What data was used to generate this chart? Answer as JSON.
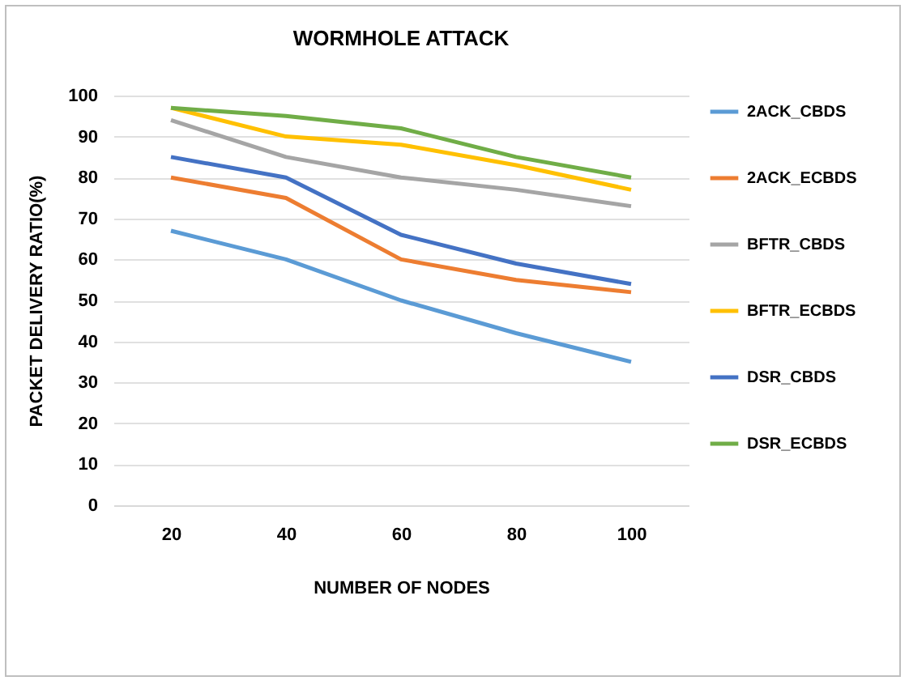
{
  "chart_data": {
    "type": "line",
    "title": "WORMHOLE ATTACK",
    "xlabel": "NUMBER OF NODES",
    "ylabel": "PACKET DELIVERY RATIO(%)",
    "categories": [
      "20",
      "40",
      "60",
      "80",
      "100"
    ],
    "series": [
      {
        "name": "2ACK_CBDS",
        "color": "#5b9bd5",
        "values": [
          67,
          60,
          50,
          42,
          35
        ]
      },
      {
        "name": "2ACK_ECBDS",
        "color": "#ed7d31",
        "values": [
          80,
          75,
          60,
          55,
          52
        ]
      },
      {
        "name": "BFTR_CBDS",
        "color": "#a5a5a5",
        "values": [
          94,
          85,
          80,
          77,
          73
        ]
      },
      {
        "name": "BFTR_ECBDS",
        "color": "#ffc000",
        "values": [
          97,
          90,
          88,
          83,
          77
        ]
      },
      {
        "name": "DSR_CBDS",
        "color": "#4472c4",
        "values": [
          85,
          80,
          66,
          59,
          54
        ]
      },
      {
        "name": "DSR_ECBDS",
        "color": "#70ad47",
        "values": [
          97,
          95,
          92,
          85,
          80
        ]
      }
    ],
    "ylim": [
      0,
      100
    ],
    "yticks": [
      0,
      10,
      20,
      30,
      40,
      50,
      60,
      70,
      80,
      90,
      100
    ],
    "grid": "y",
    "legend": "right",
    "marker": "none",
    "line_style": "solid"
  }
}
